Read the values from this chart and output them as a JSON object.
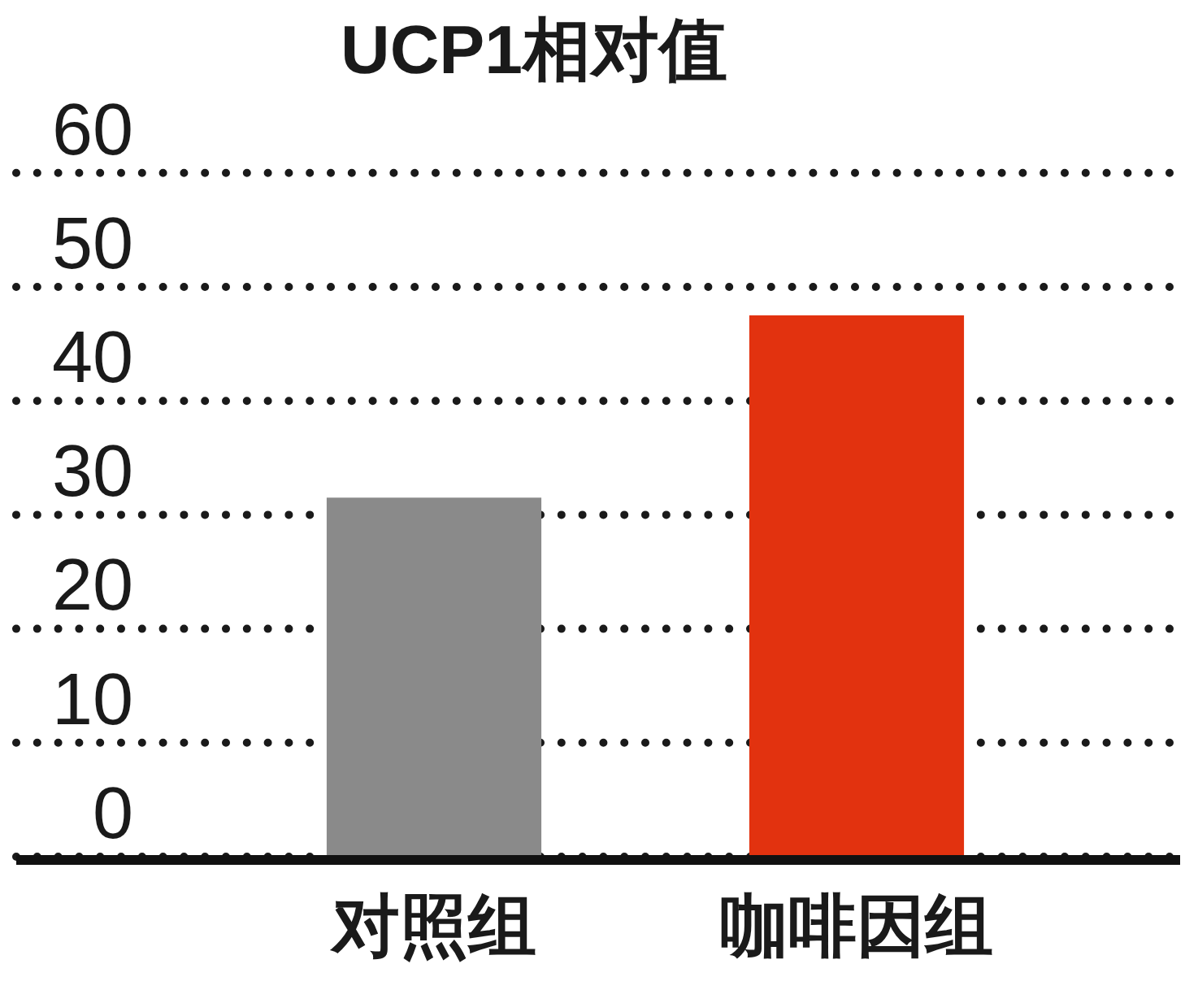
{
  "chart_data": {
    "type": "bar",
    "title": "UCP1相对值",
    "categories": [
      "对照组",
      "咖啡因组"
    ],
    "values": [
      31.5,
      47.5
    ],
    "colors": [
      "#8a8a8a",
      "#e2320f"
    ],
    "ylim": [
      0,
      60
    ],
    "yticks": [
      0,
      10,
      20,
      30,
      40,
      50,
      60
    ],
    "grid": "y"
  }
}
